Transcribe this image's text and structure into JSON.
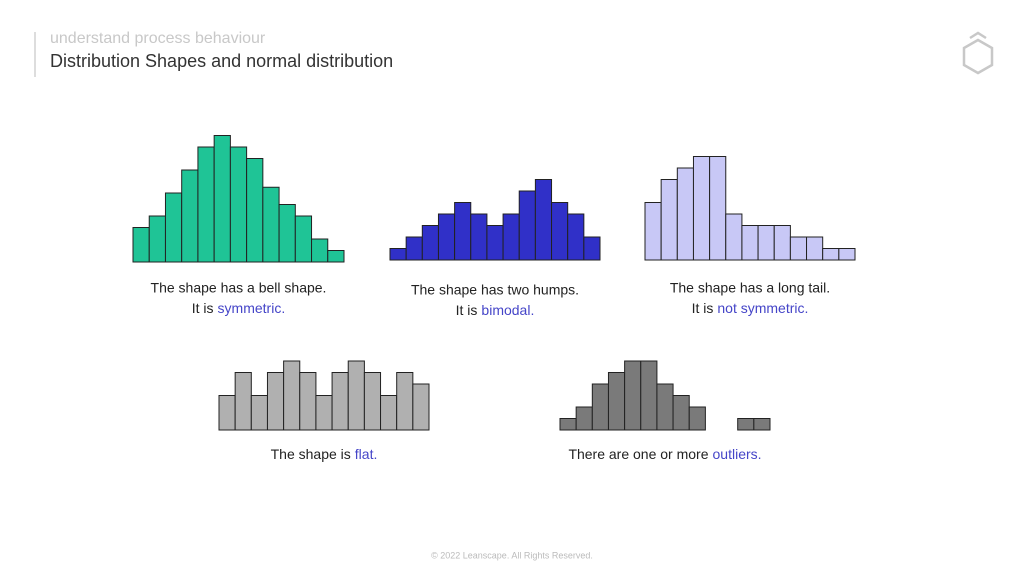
{
  "header": {
    "subtitle": "understand process behaviour",
    "title": "Distribution Shapes and normal distribution"
  },
  "footer": "© 2022 Leanscape. All Rights Reserved.",
  "chart_data": [
    {
      "type": "bar",
      "color": "#1fc496",
      "values": [
        3,
        4,
        6,
        8,
        10,
        11,
        10,
        9,
        6.5,
        5,
        4,
        2,
        1
      ],
      "caption": "The shape has a bell shape.",
      "caption2": "It is",
      "emphasis": "symmetric."
    },
    {
      "type": "bar",
      "color": "#3030c8",
      "values": [
        1,
        2,
        3,
        4,
        5,
        4,
        3,
        4,
        6,
        7,
        5,
        4,
        2
      ],
      "caption": "The shape has two humps.",
      "caption2": "It is",
      "emphasis": "bimodal."
    },
    {
      "type": "bar",
      "color": "#c8c8f6",
      "values": [
        5,
        7,
        8,
        9,
        9,
        4,
        3,
        3,
        3,
        2,
        2,
        1,
        1
      ],
      "caption": "The shape has a long tail.",
      "caption2": "It is",
      "emphasis": "not symmetric."
    },
    {
      "type": "bar",
      "color": "#b0b0b0",
      "values": [
        3,
        5,
        3,
        5,
        6,
        5,
        3,
        5,
        6,
        5,
        3,
        5,
        4
      ],
      "caption": "The shape is",
      "emphasis": "flat."
    },
    {
      "type": "bar",
      "color": "#7a7a7a",
      "values": [
        1,
        2,
        4,
        5,
        6,
        6,
        4,
        3,
        2,
        0,
        0,
        1,
        1
      ],
      "caption": "There are one or more",
      "emphasis": "outliers."
    }
  ]
}
